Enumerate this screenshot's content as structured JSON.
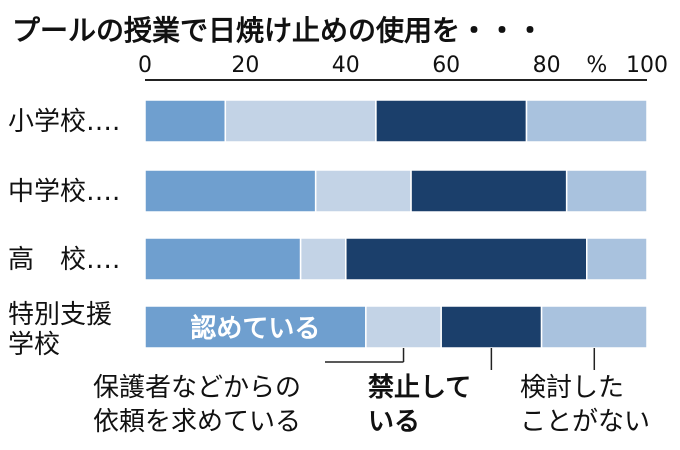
{
  "chart_data": {
    "type": "bar",
    "stacked": "horizontal",
    "title": "プールの授業で日焼け止めの使用を・・・",
    "x_ticks": [
      "0",
      "20",
      "40",
      "60",
      "80",
      "100"
    ],
    "x_unit": "%",
    "xlim": [
      0,
      100
    ],
    "categories": [
      {
        "lines": [
          "小学校…."
        ]
      },
      {
        "lines": [
          "中学校…."
        ]
      },
      {
        "lines": [
          "高　校…."
        ]
      },
      {
        "lines": [
          "特別支援",
          "学校"
        ]
      }
    ],
    "series": [
      {
        "name": "認めている",
        "values": [
          16,
          34,
          31,
          44
        ],
        "color": "#6f9fcf"
      },
      {
        "name": "保護者などからの依頼を求めている",
        "name_lines": [
          "保護者などからの",
          "依頼を求めている"
        ],
        "values": [
          30,
          19,
          9,
          15
        ],
        "color": "#c3d3e6"
      },
      {
        "name": "禁止している",
        "name_lines": [
          "禁止して",
          "いる"
        ],
        "values": [
          30,
          31,
          48,
          20
        ],
        "color": "#1b3f6b"
      },
      {
        "name": "検討したことがない",
        "name_lines": [
          "検討した",
          "ことがない"
        ],
        "values": [
          24,
          16,
          12,
          21
        ],
        "color": "#a9c2de"
      }
    ],
    "grid": false,
    "legend": "below-chart with callout lines"
  }
}
